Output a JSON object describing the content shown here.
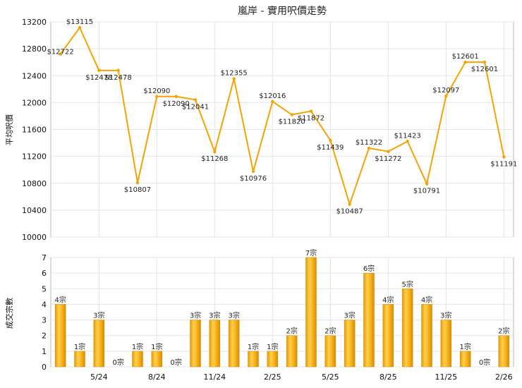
{
  "title": "嵐岸 - 實用呎價走勢",
  "chart_data": [
    {
      "type": "line",
      "ylabel": "平均呎價",
      "ylim": [
        10000,
        13200
      ],
      "yticks": [
        10000,
        10400,
        10800,
        11200,
        11600,
        12000,
        12400,
        12800,
        13200
      ],
      "color": "#f5a300",
      "series": [
        {
          "values": [
            12722,
            13115,
            12478,
            12478,
            10807,
            12090,
            12090,
            12041,
            11268,
            12355,
            10976,
            12016,
            11820,
            11872,
            11439,
            10487,
            11322,
            11272,
            11423,
            10791,
            12097,
            12601,
            12601,
            11191
          ]
        }
      ],
      "labels": [
        "$12722",
        "$13115",
        "$12478",
        "$12478",
        "$10807",
        "$12090",
        "$12090",
        "$12041",
        "$11268",
        "$12355",
        "$10976",
        "$12016",
        "$11820",
        "$11872",
        "$11439",
        "$10487",
        "$11322",
        "$11272",
        "$11423",
        "$10791",
        "$12097",
        "$12601",
        "$12601",
        "$11191"
      ]
    },
    {
      "type": "bar",
      "ylabel": "成交宗數",
      "ylim": [
        0,
        7
      ],
      "yticks": [
        0,
        1,
        2,
        3,
        4,
        5,
        6,
        7
      ],
      "xticks": [
        "5/24",
        "8/24",
        "11/24",
        "2/25",
        "5/25",
        "8/25",
        "11/25",
        "2/26"
      ],
      "color": "#f5a300",
      "values": [
        4,
        1,
        3,
        0,
        1,
        1,
        0,
        3,
        3,
        3,
        1,
        1,
        2,
        7,
        2,
        3,
        6,
        4,
        5,
        4,
        3,
        1,
        0,
        2
      ],
      "labels": [
        "4宗",
        "1宗",
        "3宗",
        "0宗",
        "1宗",
        "1宗",
        "0宗",
        "3宗",
        "3宗",
        "3宗",
        "1宗",
        "1宗",
        "2宗",
        "7宗",
        "2宗",
        "3宗",
        "6宗",
        "4宗",
        "5宗",
        "4宗",
        "3宗",
        "1宗",
        "0宗",
        "2宗"
      ]
    }
  ]
}
